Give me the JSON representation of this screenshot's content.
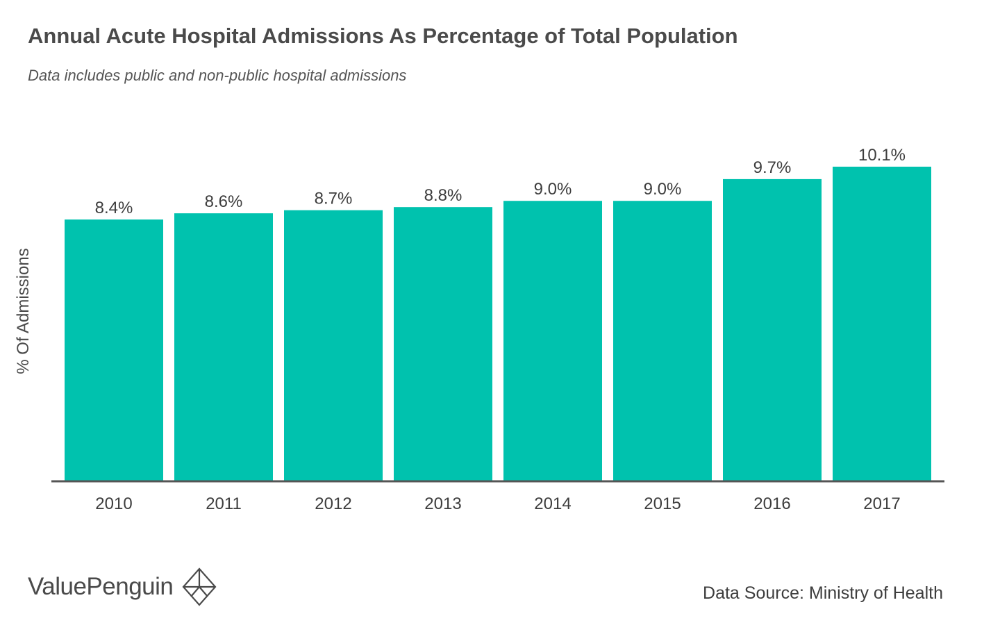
{
  "header": {
    "title": "Annual Acute Hospital Admissions As Percentage of Total Population",
    "subtitle": "Data includes public and non-public hospital admissions"
  },
  "footer": {
    "brand": "ValuePenguin",
    "source": "Data Source: Ministry of Health"
  },
  "colors": {
    "bar": "#00c2ae",
    "axis": "#555555",
    "text": "#3d3d3d"
  },
  "chart_data": {
    "type": "bar",
    "title": "Annual Acute Hospital Admissions As Percentage of Total Population",
    "subtitle": "Data includes public and non-public hospital admissions",
    "xlabel": "",
    "ylabel": "% Of Admissions",
    "categories": [
      "2010",
      "2011",
      "2012",
      "2013",
      "2014",
      "2015",
      "2016",
      "2017"
    ],
    "values": [
      8.4,
      8.6,
      8.7,
      8.8,
      9.0,
      9.0,
      9.7,
      10.1
    ],
    "data_labels": [
      "8.4%",
      "8.6%",
      "8.7%",
      "8.8%",
      "9.0%",
      "9.0%",
      "9.7%",
      "10.1%"
    ],
    "ylim": [
      0,
      10.1
    ],
    "grid": false,
    "legend": "none"
  }
}
